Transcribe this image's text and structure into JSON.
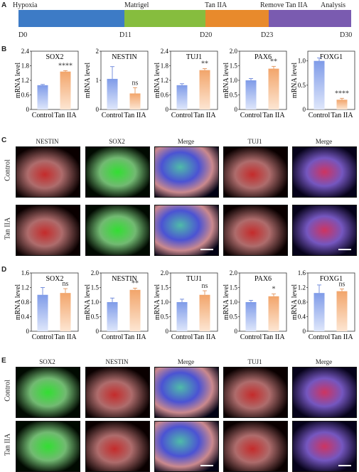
{
  "panels": {
    "A": "A",
    "B": "B",
    "C": "C",
    "D": "D",
    "E": "E"
  },
  "timeline": {
    "phases": [
      {
        "label": "Hypoxia",
        "color": "#3d7bc6"
      },
      {
        "label": "Matrigel",
        "color": "#86bd3e"
      },
      {
        "label": "Tan IIA",
        "color": "#e88a2c"
      },
      {
        "label": "Remove Tan IIA",
        "color": "#7a5bb0"
      },
      {
        "label": "Analysis",
        "color": "#7a5bb0"
      }
    ],
    "days": [
      "D0",
      "D11",
      "D20",
      "D23",
      "D30"
    ]
  },
  "colors": {
    "control": "#7f9be8",
    "tan": "#f2a56b",
    "significance": "#333333"
  },
  "chart_data": [
    {
      "type": "bar",
      "panel": "B",
      "title": "SOX2",
      "ylabel": "mRNA level",
      "categories": [
        "Control",
        "Tan IIA"
      ],
      "values": [
        1.0,
        1.56
      ],
      "errors": [
        0.03,
        0.04
      ],
      "ylim": [
        0,
        2.4
      ],
      "ticks": [
        "0",
        "0.6",
        "1.2",
        "1.8",
        "2.4"
      ],
      "tickvals": [
        0,
        0.6,
        1.2,
        1.8,
        2.4
      ],
      "significance": "****"
    },
    {
      "type": "bar",
      "panel": "B",
      "title": "NESTIN",
      "ylabel": "mRNA level",
      "categories": [
        "Control",
        "Tan IIA"
      ],
      "values": [
        1.05,
        0.55
      ],
      "errors": [
        0.42,
        0.2
      ],
      "ylim": [
        0,
        2.0
      ],
      "ticks": [
        "0",
        "1",
        "2"
      ],
      "tickvals": [
        0,
        1,
        2
      ],
      "significance": "ns"
    },
    {
      "type": "bar",
      "panel": "B",
      "title": "TUJ1",
      "ylabel": "mRNA level",
      "categories": [
        "Control",
        "Tan IIA"
      ],
      "values": [
        1.0,
        1.62
      ],
      "errors": [
        0.06,
        0.06
      ],
      "ylim": [
        0,
        2.4
      ],
      "ticks": [
        "0",
        "0.6",
        "1.2",
        "1.8",
        "2.4"
      ],
      "tickvals": [
        0,
        0.6,
        1.2,
        1.8,
        2.4
      ],
      "significance": "**"
    },
    {
      "type": "bar",
      "panel": "B",
      "title": "PAX6",
      "ylabel": "mRNA level",
      "categories": [
        "Control",
        "Tan IIA"
      ],
      "values": [
        1.0,
        1.4
      ],
      "errors": [
        0.06,
        0.08
      ],
      "ylim": [
        0,
        2.0
      ],
      "ticks": [
        "0",
        "0.5",
        "1.0",
        "1.5",
        "2.0"
      ],
      "tickvals": [
        0,
        0.5,
        1.0,
        1.5,
        2.0
      ],
      "significance": "**"
    },
    {
      "type": "bar",
      "panel": "B",
      "title": "FOXG1",
      "ylabel": "mRNA level",
      "categories": [
        "Control",
        "Tan IIA"
      ],
      "values": [
        1.0,
        0.2
      ],
      "errors": [
        0.06,
        0.03
      ],
      "ylim": [
        0,
        1.2
      ],
      "ticks": [
        "0",
        "0.5",
        "1.0"
      ],
      "tickvals": [
        0,
        0.5,
        1.0
      ],
      "significance": "****"
    },
    {
      "type": "bar",
      "panel": "D",
      "title": "SOX2",
      "ylabel": "mRNA level",
      "categories": [
        "Control",
        "Tan IIA"
      ],
      "values": [
        1.0,
        1.05
      ],
      "errors": [
        0.2,
        0.12
      ],
      "ylim": [
        0,
        1.6
      ],
      "ticks": [
        "0",
        "0.4",
        "0.8",
        "1.2",
        "1.6"
      ],
      "tickvals": [
        0,
        0.4,
        0.8,
        1.2,
        1.6
      ],
      "significance": "ns"
    },
    {
      "type": "bar",
      "panel": "D",
      "title": "NESTIN",
      "ylabel": "mRNA level",
      "categories": [
        "Control",
        "Tan IIA"
      ],
      "values": [
        1.0,
        1.42
      ],
      "errors": [
        0.14,
        0.06
      ],
      "ylim": [
        0,
        2.0
      ],
      "ticks": [
        "0",
        "0.5",
        "1.0",
        "1.5",
        "2.0"
      ],
      "tickvals": [
        0,
        0.5,
        1.0,
        1.5,
        2.0
      ],
      "significance": "**"
    },
    {
      "type": "bar",
      "panel": "D",
      "title": "TUJ1",
      "ylabel": "mRNA level",
      "categories": [
        "Control",
        "Tan IIA"
      ],
      "values": [
        1.0,
        1.25
      ],
      "errors": [
        0.1,
        0.14
      ],
      "ylim": [
        0,
        2.0
      ],
      "ticks": [
        "0",
        "0.5",
        "1.0",
        "1.5",
        "2.0"
      ],
      "tickvals": [
        0,
        0.5,
        1.0,
        1.5,
        2.0
      ],
      "significance": "ns"
    },
    {
      "type": "bar",
      "panel": "D",
      "title": "PAX6",
      "ylabel": "mRNA level",
      "categories": [
        "Control",
        "Tan IIA"
      ],
      "values": [
        1.0,
        1.2
      ],
      "errors": [
        0.06,
        0.08
      ],
      "ylim": [
        0,
        2.0
      ],
      "ticks": [
        "0",
        "0.5",
        "1.0",
        "1.5",
        "2.0"
      ],
      "tickvals": [
        0,
        0.5,
        1.0,
        1.5,
        2.0
      ],
      "significance": "*"
    },
    {
      "type": "bar",
      "panel": "D",
      "title": "FOXG1",
      "ylabel": "mRNA level",
      "categories": [
        "Control",
        "Tan IIA"
      ],
      "values": [
        1.05,
        1.1
      ],
      "errors": [
        0.22,
        0.06
      ],
      "ylim": [
        0,
        1.6
      ],
      "ticks": [
        "0",
        "0.4",
        "0.8",
        "1.2",
        "1.6"
      ],
      "tickvals": [
        0,
        0.4,
        0.8,
        1.2,
        1.6
      ],
      "significance": "ns"
    }
  ],
  "panel_c": {
    "columns": [
      "NESTIN",
      "SOX2",
      "Merge",
      "TUJ1",
      "Merge"
    ],
    "rows": [
      "Control",
      "Tan IIA"
    ],
    "image_colors": [
      "red",
      "green",
      "merge-blue",
      "red",
      "merge-purple"
    ]
  },
  "panel_e": {
    "columns": [
      "SOX2",
      "NESTIN",
      "Merge",
      "TUJ1",
      "Merge"
    ],
    "rows": [
      "Control",
      "Tan IIA"
    ],
    "image_colors": [
      "green",
      "red",
      "merge-blue",
      "red",
      "merge-purple"
    ]
  }
}
